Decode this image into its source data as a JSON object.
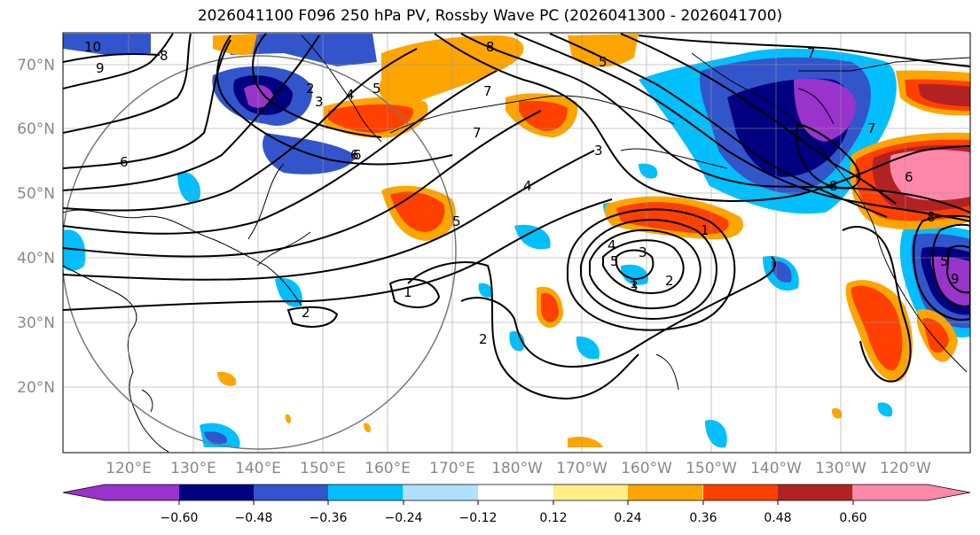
{
  "title": "2026041100 F096 250 hPa PV, Rossby Wave PC (2026041300 - 2026041700)",
  "map": {
    "lat_labels": [
      "70°N",
      "60°N",
      "50°N",
      "40°N",
      "30°N",
      "20°N"
    ],
    "lon_labels": [
      "120°E",
      "130°E",
      "140°E",
      "150°E",
      "160°E",
      "170°E",
      "180°W",
      "170°W",
      "160°W",
      "150°W",
      "140°W",
      "130°W",
      "120°W"
    ],
    "contour_labels": [
      "10",
      "9",
      "8",
      "2",
      "3",
      "4",
      "5",
      "6",
      "7",
      "8",
      "7",
      "6",
      "7",
      "3",
      "4",
      "5",
      "6",
      "3",
      "2",
      "5",
      "7",
      "8",
      "6",
      "1",
      "4",
      "3",
      "5",
      "1",
      "2",
      "2",
      "1",
      "5",
      "9",
      "8"
    ]
  },
  "colorbar": {
    "colors": [
      "#9933cc",
      "#000080",
      "#3355cc",
      "#00bfff",
      "#b0e0ff",
      "#ffffff",
      "#ffee88",
      "#ffa500",
      "#ff4000",
      "#b22222",
      "#ff88aa"
    ],
    "tick_labels": [
      "−0.60",
      "−0.48",
      "−0.36",
      "−0.24",
      "−0.12",
      "0.12",
      "0.24",
      "0.36",
      "0.48",
      "0.60"
    ]
  }
}
